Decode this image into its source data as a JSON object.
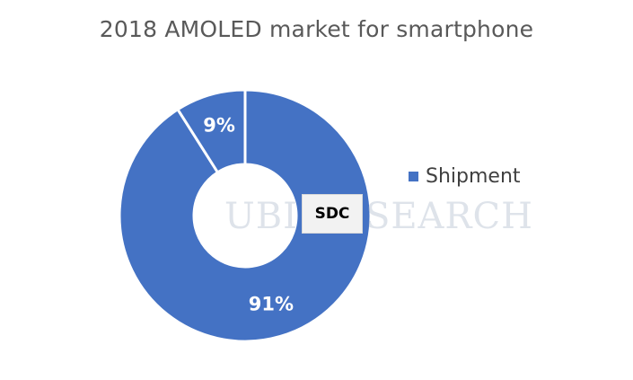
{
  "chart_data": {
    "type": "pie",
    "title": "2018 AMOLED market for smartphone",
    "series_name": "Shipment",
    "slices": [
      {
        "label": "SDC",
        "value": 91,
        "value_label": "91%",
        "color": "#4472c4"
      },
      {
        "label": "",
        "value": 9,
        "value_label": "9%",
        "color": "#4472c4"
      }
    ],
    "donut": true,
    "legend_position": "right"
  },
  "callout": {
    "text": "SDC"
  },
  "watermark": {
    "text": "UBI RESEARCH"
  }
}
